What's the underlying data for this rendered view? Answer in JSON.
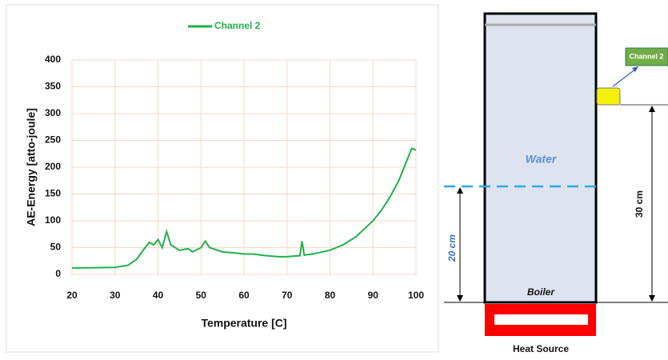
{
  "chart_data": {
    "type": "line",
    "xlabel": "Temperature [C]",
    "ylabel": "AE-Energy [atto-joule]",
    "x": [
      20,
      30,
      33,
      35,
      37,
      38,
      39,
      40,
      41,
      42,
      43,
      44,
      45,
      47,
      48,
      50,
      51,
      52,
      55,
      58,
      60,
      62,
      65,
      68,
      70,
      73,
      73.5,
      74,
      76,
      80,
      83,
      86,
      88,
      90,
      92,
      94,
      96,
      97,
      98,
      99,
      100
    ],
    "series": [
      {
        "name": "Channel 2",
        "color": "#1fb14a",
        "values": [
          12,
          13,
          17,
          28,
          50,
          60,
          55,
          65,
          50,
          80,
          55,
          50,
          45,
          48,
          42,
          50,
          62,
          50,
          42,
          40,
          38,
          38,
          35,
          33,
          33,
          35,
          62,
          36,
          38,
          45,
          55,
          70,
          85,
          100,
          120,
          145,
          175,
          195,
          215,
          235,
          232
        ]
      }
    ],
    "xlim": [
      20,
      100
    ],
    "xticks": [
      20,
      30,
      40,
      50,
      60,
      70,
      80,
      90,
      100
    ],
    "ylim": [
      0,
      400
    ],
    "yticks": [
      0,
      50,
      100,
      150,
      200,
      250,
      300,
      350,
      400
    ],
    "grid": true,
    "grid_color": "#f6d9c4",
    "legend": "top"
  },
  "diagram": {
    "sensor_label": "Channel 2",
    "water_label": "Water",
    "height_20": "20 cm",
    "height_30": "30 cm",
    "boiler_label": "Boiler",
    "heat_label": "Heat Source"
  }
}
